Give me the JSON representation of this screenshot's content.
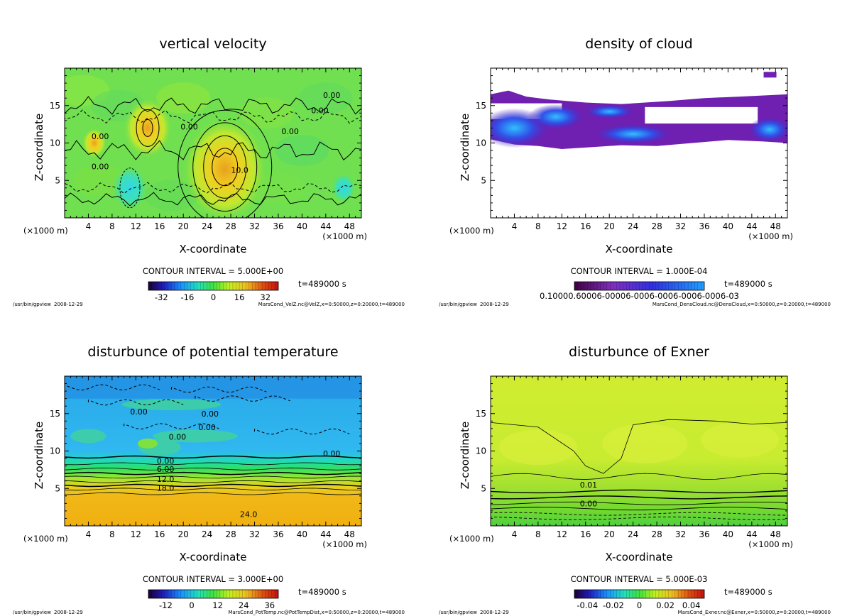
{
  "window": {
    "footer_left_program": "/usr/bin/gpview",
    "footer_left_date": "2008-12-29"
  },
  "colors": {
    "background": "#ffffff",
    "axis": "#000000",
    "contour_line": "#000000"
  },
  "chart_data": [
    {
      "type": "heatmap",
      "title": "vertical velocity",
      "xlabel": "X-coordinate",
      "ylabel": "Z-coordinate",
      "x_unit_left": "(×1000 m)",
      "x_unit_right": "(×1000 m)",
      "xlim": [
        0,
        50
      ],
      "ylim": [
        0,
        20
      ],
      "xticks": [
        4,
        8,
        12,
        16,
        20,
        24,
        28,
        32,
        36,
        40,
        44,
        48
      ],
      "yticks": [
        5,
        10,
        15
      ],
      "contour_interval_text": "CONTOUR INTERVAL = 5.000E+00",
      "time_text": "t=489000 s",
      "colorbar_ticks": [
        "-32",
        "-16",
        "0",
        "16",
        "32"
      ],
      "colorbar_range": [
        -40,
        40
      ],
      "colormap": "rainbow",
      "contour_labels": [
        "0.00",
        "0.00",
        "10.0",
        "0.00",
        "0.00",
        "0.00",
        "0.00"
      ],
      "footer_right": "MarsCond_VelZ.nc@VelZ,x=0:50000,z=0:20000,t=489000",
      "field_description": "mostly near-zero field with a strong positive updraft centred near x=27, z=6 and a weaker one near x=14, z=12; weak negative area near x=11, z=4",
      "features": [
        {
          "x": 27,
          "z": 6.5,
          "value": 14
        },
        {
          "x": 14,
          "z": 12,
          "value": 8
        },
        {
          "x": 11,
          "z": 4,
          "value": -6
        },
        {
          "x": 47,
          "z": 4,
          "value": -4
        },
        {
          "x": 5,
          "z": 10,
          "value": 4
        }
      ]
    },
    {
      "type": "heatmap",
      "title": "density of cloud",
      "xlabel": "X-coordinate",
      "ylabel": "Z-coordinate",
      "x_unit_left": "(×1000 m)",
      "x_unit_right": "(×1000 m)",
      "xlim": [
        0,
        50
      ],
      "ylim": [
        0,
        20
      ],
      "xticks": [
        4,
        8,
        12,
        16,
        20,
        24,
        28,
        32,
        36,
        40,
        44,
        48
      ],
      "yticks": [
        5,
        10,
        15
      ],
      "contour_interval_text": "CONTOUR INTERVAL = 1.000E-04",
      "time_text": "t=489000 s",
      "colorbar_tick_text": "0.10000.60006-00006-0006-0006-0006-0006-03",
      "colorbar_range": [
        0.0001,
        0.002
      ],
      "colormap": "purple-blue",
      "footer_right": "MarsCond_DensCloud.nc@DensCloud,x=0:50000,z=0:20000,t=489000",
      "field_description": "cloud present only in a band between z≈9 and z≈17; higher density pockets near x=2–8, z=11–13 and x=20–28, z=10–12"
    },
    {
      "type": "heatmap",
      "title": "disturbunce of potential temperature",
      "xlabel": "X-coordinate",
      "ylabel": "Z-coordinate",
      "x_unit_left": "(×1000 m)",
      "x_unit_right": "(×1000 m)",
      "xlim": [
        0,
        50
      ],
      "ylim": [
        0,
        20
      ],
      "xticks": [
        4,
        8,
        12,
        16,
        20,
        24,
        28,
        32,
        36,
        40,
        44,
        48
      ],
      "yticks": [
        5,
        10,
        15
      ],
      "contour_interval_text": "CONTOUR INTERVAL = 3.000E+00",
      "time_text": "t=489000 s",
      "colorbar_ticks": [
        "-12",
        "0",
        "12",
        "24",
        "36"
      ],
      "colorbar_range": [
        -20,
        40
      ],
      "colormap": "rainbow",
      "contour_labels": [
        "0.00",
        "0.00",
        "0.00",
        "0.00",
        "0.00",
        "0.00",
        "6.00",
        "12.0",
        "18.0",
        "24.0"
      ],
      "footer_right": "MarsCond_PotTemp.nc@PotTempDist,x=0:50000,z=0:20000,t=489000",
      "field_description": "warm layer (~24) below z≈4, strong stratification between z≈4 and z≈9, cool upper region (~-8) with small warmer patches near z≈11–17",
      "profile": [
        {
          "z": 1,
          "value": 26
        },
        {
          "z": 3,
          "value": 25
        },
        {
          "z": 4.5,
          "value": 20
        },
        {
          "z": 5.5,
          "value": 15
        },
        {
          "z": 6.5,
          "value": 11
        },
        {
          "z": 7.5,
          "value": 7
        },
        {
          "z": 8.5,
          "value": 3
        },
        {
          "z": 9.5,
          "value": -1
        },
        {
          "z": 11,
          "value": -5
        },
        {
          "z": 13,
          "value": -7
        },
        {
          "z": 15,
          "value": -6
        },
        {
          "z": 17,
          "value": -8
        },
        {
          "z": 19,
          "value": -10
        }
      ]
    },
    {
      "type": "heatmap",
      "title": "disturbunce of Exner",
      "xlabel": "X-coordinate",
      "ylabel": "Z-coordinate",
      "x_unit_left": "(×1000 m)",
      "x_unit_right": "(×1000 m)",
      "xlim": [
        0,
        50
      ],
      "ylim": [
        0,
        20
      ],
      "xticks": [
        4,
        8,
        12,
        16,
        20,
        24,
        28,
        32,
        36,
        40,
        44,
        48
      ],
      "yticks": [
        5,
        10,
        15
      ],
      "contour_interval_text": "CONTOUR INTERVAL = 5.000E-03",
      "time_text": "t=489000 s",
      "colorbar_ticks": [
        "-0.04",
        "-0.02",
        "0",
        "0.02",
        "0.04"
      ],
      "colorbar_range": [
        -0.05,
        0.05
      ],
      "colormap": "rainbow",
      "contour_labels": [
        "0.01",
        "0.00"
      ],
      "footer_right": "MarsCond_Exner.nc@Exner,x=0:50000,z=0:20000,t=489000",
      "field_description": "nearly horizontally uniform field around 0.01–0.015 in the upper region, decreasing to about -0.01 near the ground",
      "profile": [
        {
          "z": 0.5,
          "value": -0.012
        },
        {
          "z": 2,
          "value": -0.005
        },
        {
          "z": 3.5,
          "value": 0.002
        },
        {
          "z": 5,
          "value": 0.008
        },
        {
          "z": 7,
          "value": 0.013
        },
        {
          "z": 10,
          "value": 0.016
        },
        {
          "z": 14,
          "value": 0.014
        },
        {
          "z": 17,
          "value": 0.011
        },
        {
          "z": 20,
          "value": 0.01
        }
      ]
    }
  ]
}
